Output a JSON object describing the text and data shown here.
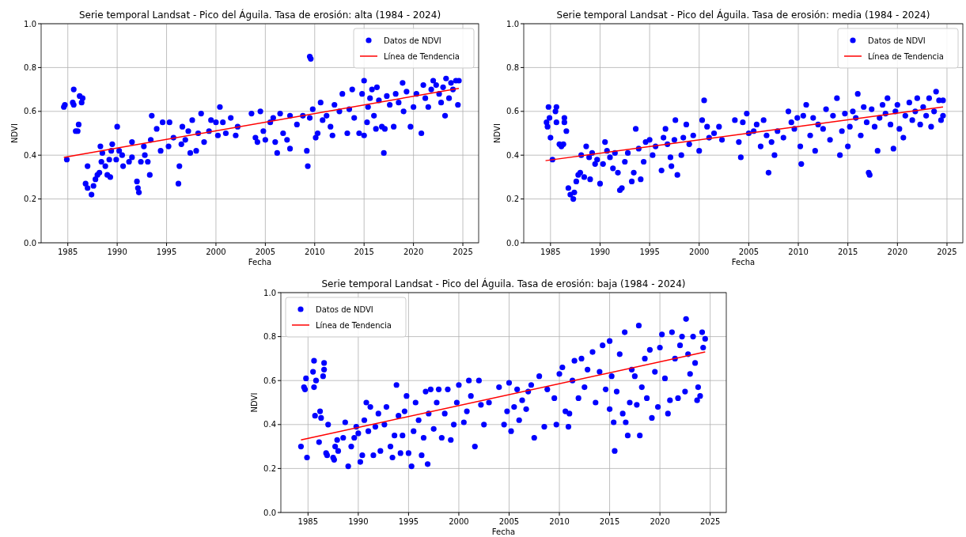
{
  "chart_data": [
    {
      "type": "scatter",
      "title": "Serie temporal Landsat - Pico del Águila. Tasa de erosión: alta (1984 - 2024)",
      "xlabel": "Fecha",
      "ylabel": "NDVI",
      "xlim": [
        1982.3,
        2026.6
      ],
      "ylim": [
        0,
        1
      ],
      "xticks": [
        1985,
        1990,
        1995,
        2000,
        2005,
        2010,
        2015,
        2020,
        2025
      ],
      "yticks": [
        {
          "value": 0,
          "label": "0.0"
        },
        {
          "value": 0.2,
          "label": "0.2"
        },
        {
          "value": 0.4,
          "label": "0.4"
        },
        {
          "value": 0.6,
          "label": "0.6"
        },
        {
          "value": 0.8,
          "label": "0.8"
        },
        {
          "value": 1,
          "label": "1.0"
        }
      ],
      "grid": true,
      "legend": "top right",
      "series": [
        {
          "name": "Datos de NDVI",
          "type": "scatter",
          "marker": "circle",
          "color": "#0000ff",
          "x": [
            1984.6,
            1984.7,
            1984.9,
            1985.5,
            1985.6,
            1985.6,
            1985.8,
            1986.0,
            1986.1,
            1986.2,
            1986.4,
            1986.5,
            1987.0,
            1986.8,
            1987.0,
            1987.4,
            1987.6,
            1987.8,
            1988.0,
            1988.2,
            1988.5,
            1988.4,
            1988.3,
            1988.8,
            1989.0,
            1989.3,
            1989.2,
            1989.4,
            1989.5,
            1989.9,
            1990.2,
            1990.5,
            1990.0,
            1990.6,
            1991.2,
            1991.5,
            1991.5,
            1992.0,
            1992.1,
            1992.2,
            1992.4,
            1992.8,
            1992.7,
            1993.3,
            1993.1,
            1993.5,
            1993.4,
            1994.0,
            1994.4,
            1994.6,
            1995.2,
            1995.3,
            1995.7,
            1996.2,
            1996.3,
            1996.5,
            1996.6,
            1996.9,
            1997.2,
            1997.4,
            1997.6,
            1998.0,
            1998.2,
            1998.5,
            1998.8,
            1999.3,
            1999.5,
            2000.0,
            2000.2,
            2000.4,
            2000.7,
            2001.0,
            2001.5,
            2002.0,
            2002.2,
            2003.6,
            2004.0,
            2004.2,
            2004.5,
            2004.8,
            2005.0,
            2005.5,
            2005.8,
            2006.0,
            2006.2,
            2006.5,
            2006.8,
            2007.2,
            2007.5,
            2007.5,
            2008.2,
            2008.8,
            2009.2,
            2009.3,
            2009.5,
            2009.6,
            2009.5,
            2009.8,
            2010.1,
            2010.3,
            2010.6,
            2010.8,
            2011.2,
            2011.6,
            2011.8,
            2012.0,
            2012.5,
            2012.8,
            2013.3,
            2013.5,
            2013.8,
            2014.0,
            2014.5,
            2014.8,
            2015.0,
            2015.0,
            2015.3,
            2015.4,
            2015.6,
            2015.8,
            2016.0,
            2016.2,
            2016.3,
            2016.5,
            2016.8,
            2017.0,
            2017.1,
            2017.3,
            2017.6,
            2018.0,
            2018.2,
            2018.5,
            2018.9,
            2019.0,
            2019.3,
            2019.7,
            2020.0,
            2020.3,
            2020.8,
            2021.0,
            2021.2,
            2021.5,
            2021.8,
            2022.0,
            2022.3,
            2022.6,
            2022.8,
            2023.0,
            2023.2,
            2023.3,
            2023.6,
            2023.8,
            2024.0,
            2024.3,
            2024.5,
            2024.6
          ],
          "values": [
            0.62,
            0.63,
            0.38,
            0.64,
            0.7,
            0.63,
            0.51,
            0.51,
            0.54,
            0.67,
            0.64,
            0.66,
            0.35,
            0.27,
            0.25,
            0.22,
            0.26,
            0.29,
            0.31,
            0.32,
            0.41,
            0.37,
            0.44,
            0.35,
            0.31,
            0.3,
            0.38,
            0.42,
            0.45,
            0.38,
            0.42,
            0.4,
            0.53,
            0.35,
            0.37,
            0.39,
            0.46,
            0.28,
            0.25,
            0.23,
            0.37,
            0.4,
            0.44,
            0.31,
            0.37,
            0.58,
            0.47,
            0.52,
            0.42,
            0.55,
            0.44,
            0.55,
            0.48,
            0.27,
            0.35,
            0.45,
            0.53,
            0.47,
            0.51,
            0.41,
            0.56,
            0.42,
            0.5,
            0.59,
            0.46,
            0.51,
            0.56,
            0.55,
            0.49,
            0.62,
            0.55,
            0.5,
            0.57,
            0.49,
            0.53,
            0.59,
            0.48,
            0.46,
            0.6,
            0.51,
            0.47,
            0.55,
            0.57,
            0.46,
            0.41,
            0.59,
            0.5,
            0.47,
            0.43,
            0.58,
            0.54,
            0.58,
            0.42,
            0.35,
            0.85,
            0.84,
            0.57,
            0.61,
            0.48,
            0.5,
            0.64,
            0.56,
            0.58,
            0.53,
            0.49,
            0.63,
            0.6,
            0.68,
            0.5,
            0.61,
            0.7,
            0.57,
            0.5,
            0.68,
            0.49,
            0.74,
            0.55,
            0.62,
            0.66,
            0.7,
            0.58,
            0.52,
            0.71,
            0.65,
            0.53,
            0.41,
            0.52,
            0.67,
            0.63,
            0.53,
            0.68,
            0.64,
            0.73,
            0.6,
            0.69,
            0.53,
            0.62,
            0.68,
            0.5,
            0.72,
            0.66,
            0.62,
            0.7,
            0.74,
            0.72,
            0.68,
            0.64,
            0.71,
            0.58,
            0.75,
            0.66,
            0.73,
            0.7,
            0.74,
            0.63,
            0.74
          ]
        },
        {
          "name": "Línea de Tendencia",
          "type": "line",
          "marker": "none",
          "color": "#ff0000",
          "x": [
            1984.6,
            2024.6
          ],
          "values": [
            0.39,
            0.705
          ]
        }
      ]
    },
    {
      "type": "scatter",
      "title": "Serie temporal Landsat - Pico del Águila. Tasa de erosión: media (1984 - 2024)",
      "xlabel": "Fecha",
      "ylabel": "NDVI",
      "xlim": [
        1982.3,
        2026.6
      ],
      "ylim": [
        0,
        1
      ],
      "xticks": [
        1985,
        1990,
        1995,
        2000,
        2005,
        2010,
        2015,
        2020,
        2025
      ],
      "yticks": [
        {
          "value": 0,
          "label": "0.0"
        },
        {
          "value": 0.2,
          "label": "0.2"
        },
        {
          "value": 0.4,
          "label": "0.4"
        },
        {
          "value": 0.6,
          "label": "0.6"
        },
        {
          "value": 0.8,
          "label": "0.8"
        },
        {
          "value": 1,
          "label": "1.0"
        }
      ],
      "grid": true,
      "legend": "top right",
      "series": [
        {
          "name": "Datos de NDVI",
          "type": "scatter",
          "marker": "circle",
          "color": "#0000ff",
          "x": [
            1984.6,
            1984.7,
            1984.8,
            1984.9,
            1985.0,
            1985.2,
            1985.5,
            1985.6,
            1985.6,
            1985.9,
            1986.1,
            1986.3,
            1986.4,
            1986.4,
            1986.6,
            1986.8,
            1987.0,
            1987.3,
            1987.4,
            1987.6,
            1987.8,
            1988.0,
            1988.1,
            1988.4,
            1988.6,
            1988.9,
            1989.0,
            1989.2,
            1989.5,
            1989.7,
            1990.0,
            1990.3,
            1990.5,
            1990.7,
            1991.0,
            1991.3,
            1991.5,
            1991.8,
            1992.0,
            1992.2,
            1992.5,
            1992.8,
            1993.2,
            1993.4,
            1993.6,
            1993.9,
            1994.1,
            1994.4,
            1994.6,
            1995.0,
            1995.3,
            1995.6,
            1996.2,
            1996.4,
            1996.6,
            1996.8,
            1997.1,
            1997.2,
            1997.5,
            1997.6,
            1997.8,
            1998.2,
            1998.4,
            1998.7,
            1999.0,
            1999.4,
            2000.0,
            2000.3,
            2000.5,
            2000.8,
            2001.0,
            2001.5,
            2002.0,
            2002.3,
            2003.6,
            2004.0,
            2004.2,
            2004.4,
            2004.8,
            2005.0,
            2005.5,
            2005.8,
            2006.2,
            2006.5,
            2006.8,
            2007.0,
            2007.3,
            2007.6,
            2007.9,
            2008.5,
            2009.0,
            2009.3,
            2009.6,
            2009.9,
            2010.2,
            2010.3,
            2010.5,
            2010.8,
            2011.2,
            2011.5,
            2011.7,
            2012.0,
            2012.5,
            2012.8,
            2013.2,
            2013.5,
            2013.9,
            2014.2,
            2014.4,
            2014.7,
            2015.0,
            2015.2,
            2015.5,
            2015.8,
            2016.0,
            2016.3,
            2016.6,
            2016.9,
            2017.1,
            2017.2,
            2017.4,
            2017.7,
            2018.0,
            2018.2,
            2018.5,
            2018.8,
            2019.0,
            2019.3,
            2019.6,
            2019.8,
            2020.0,
            2020.2,
            2020.6,
            2020.8,
            2021.2,
            2021.5,
            2021.8,
            2022.0,
            2022.3,
            2022.6,
            2022.9,
            2023.2,
            2023.4,
            2023.7,
            2023.9,
            2024.2,
            2024.4,
            2024.6,
            2024.6
          ],
          "values": [
            0.55,
            0.53,
            0.62,
            0.57,
            0.48,
            0.38,
            0.6,
            0.62,
            0.55,
            0.45,
            0.44,
            0.45,
            0.55,
            0.57,
            0.51,
            0.25,
            0.22,
            0.2,
            0.23,
            0.28,
            0.31,
            0.32,
            0.4,
            0.3,
            0.44,
            0.39,
            0.29,
            0.41,
            0.36,
            0.38,
            0.27,
            0.36,
            0.46,
            0.42,
            0.39,
            0.34,
            0.41,
            0.32,
            0.24,
            0.25,
            0.37,
            0.41,
            0.28,
            0.32,
            0.52,
            0.43,
            0.29,
            0.37,
            0.46,
            0.47,
            0.4,
            0.44,
            0.33,
            0.48,
            0.52,
            0.45,
            0.39,
            0.35,
            0.47,
            0.56,
            0.31,
            0.4,
            0.48,
            0.54,
            0.45,
            0.49,
            0.42,
            0.56,
            0.65,
            0.53,
            0.48,
            0.5,
            0.53,
            0.47,
            0.56,
            0.46,
            0.39,
            0.55,
            0.59,
            0.5,
            0.51,
            0.54,
            0.44,
            0.56,
            0.49,
            0.32,
            0.46,
            0.4,
            0.51,
            0.48,
            0.6,
            0.55,
            0.52,
            0.57,
            0.44,
            0.36,
            0.58,
            0.63,
            0.49,
            0.57,
            0.42,
            0.54,
            0.52,
            0.61,
            0.47,
            0.58,
            0.66,
            0.4,
            0.51,
            0.59,
            0.44,
            0.53,
            0.6,
            0.57,
            0.68,
            0.49,
            0.62,
            0.55,
            0.32,
            0.31,
            0.61,
            0.53,
            0.42,
            0.57,
            0.63,
            0.59,
            0.66,
            0.54,
            0.43,
            0.6,
            0.63,
            0.52,
            0.48,
            0.58,
            0.64,
            0.56,
            0.6,
            0.66,
            0.54,
            0.62,
            0.58,
            0.66,
            0.53,
            0.6,
            0.69,
            0.65,
            0.56,
            0.65,
            0.58
          ]
        },
        {
          "name": "Línea de Tendencia",
          "type": "line",
          "marker": "none",
          "color": "#ff0000",
          "x": [
            1984.5,
            2024.6
          ],
          "values": [
            0.375,
            0.62
          ]
        }
      ]
    },
    {
      "type": "scatter",
      "title": "Serie temporal Landsat - Pico del Águila. Tasa de erosión: baja (1984 - 2024)",
      "xlabel": "Fecha",
      "ylabel": "NDVI",
      "xlim": [
        1982.3,
        2026.6
      ],
      "ylim": [
        0,
        1
      ],
      "xticks": [
        1985,
        1990,
        1995,
        2000,
        2005,
        2010,
        2015,
        2020,
        2025
      ],
      "yticks": [
        {
          "value": 0,
          "label": "0.0"
        },
        {
          "value": 0.2,
          "label": "0.2"
        },
        {
          "value": 0.4,
          "label": "0.4"
        },
        {
          "value": 0.6,
          "label": "0.6"
        },
        {
          "value": 0.8,
          "label": "0.8"
        },
        {
          "value": 1,
          "label": "1.0"
        }
      ],
      "grid": true,
      "legend": "top left",
      "series": [
        {
          "name": "Datos de NDVI",
          "type": "scatter",
          "marker": "circle",
          "color": "#0000ff",
          "x": [
            1984.3,
            1984.6,
            1984.7,
            1984.8,
            1984.9,
            1985.5,
            1985.6,
            1985.6,
            1985.8,
            1985.7,
            1986.1,
            1986.2,
            1986.3,
            1986.5,
            1986.6,
            1986.6,
            1986.8,
            1986.9,
            1987.0,
            1987.5,
            1987.6,
            1987.7,
            1987.9,
            1988.0,
            1988.5,
            1988.7,
            1989.0,
            1989.3,
            1989.6,
            1989.8,
            1990.0,
            1990.2,
            1990.4,
            1990.6,
            1990.8,
            1991.0,
            1991.2,
            1991.5,
            1991.7,
            1992.0,
            1992.2,
            1992.6,
            1992.8,
            1993.2,
            1993.4,
            1993.6,
            1993.8,
            1994.0,
            1994.2,
            1994.4,
            1994.6,
            1994.8,
            1995.0,
            1995.3,
            1995.5,
            1995.7,
            1996.0,
            1996.3,
            1996.5,
            1996.7,
            1996.9,
            1997.0,
            1997.2,
            1997.5,
            1997.8,
            1998.0,
            1998.3,
            1998.6,
            1998.9,
            1999.2,
            1999.5,
            1999.8,
            2000.0,
            2000.5,
            2000.8,
            2001.0,
            2001.2,
            2001.6,
            2002.0,
            2002.2,
            2002.5,
            2003.0,
            2004.0,
            2004.5,
            2004.8,
            2005.0,
            2005.2,
            2005.5,
            2005.8,
            2006.0,
            2006.3,
            2006.7,
            2006.9,
            2007.2,
            2007.5,
            2008.0,
            2008.5,
            2008.8,
            2009.5,
            2009.7,
            2010.0,
            2010.3,
            2010.6,
            2010.9,
            2011.0,
            2011.3,
            2011.5,
            2011.9,
            2012.2,
            2012.5,
            2012.8,
            2013.3,
            2013.6,
            2014.0,
            2014.3,
            2014.6,
            2015.0,
            2015.0,
            2015.2,
            2015.4,
            2015.5,
            2015.7,
            2016.0,
            2016.3,
            2016.5,
            2016.6,
            2016.8,
            2017.0,
            2017.2,
            2017.5,
            2017.7,
            2017.9,
            2018.0,
            2018.2,
            2018.5,
            2018.7,
            2019.0,
            2019.2,
            2019.5,
            2019.8,
            2020.0,
            2020.2,
            2020.5,
            2020.8,
            2021.0,
            2021.2,
            2021.5,
            2021.8,
            2022.0,
            2022.2,
            2022.5,
            2022.6,
            2022.8,
            2023.0,
            2023.3,
            2023.5,
            2023.7,
            2023.8,
            2024.0,
            2024.2,
            2024.3,
            2024.5
          ],
          "values": [
            0.3,
            0.57,
            0.56,
            0.61,
            0.25,
            0.64,
            0.69,
            0.57,
            0.6,
            0.44,
            0.32,
            0.46,
            0.43,
            0.62,
            0.65,
            0.68,
            0.27,
            0.26,
            0.4,
            0.25,
            0.24,
            0.3,
            0.33,
            0.28,
            0.34,
            0.41,
            0.21,
            0.3,
            0.34,
            0.39,
            0.36,
            0.23,
            0.26,
            0.42,
            0.5,
            0.37,
            0.48,
            0.26,
            0.39,
            0.45,
            0.28,
            0.4,
            0.48,
            0.3,
            0.25,
            0.35,
            0.58,
            0.44,
            0.27,
            0.35,
            0.46,
            0.53,
            0.27,
            0.21,
            0.37,
            0.5,
            0.42,
            0.26,
            0.34,
            0.55,
            0.22,
            0.45,
            0.56,
            0.38,
            0.5,
            0.56,
            0.34,
            0.45,
            0.56,
            0.33,
            0.4,
            0.5,
            0.58,
            0.41,
            0.46,
            0.6,
            0.53,
            0.3,
            0.6,
            0.49,
            0.4,
            0.5,
            0.57,
            0.4,
            0.46,
            0.59,
            0.37,
            0.48,
            0.56,
            0.42,
            0.51,
            0.47,
            0.55,
            0.58,
            0.34,
            0.62,
            0.39,
            0.56,
            0.52,
            0.4,
            0.63,
            0.66,
            0.46,
            0.39,
            0.45,
            0.6,
            0.69,
            0.52,
            0.7,
            0.57,
            0.65,
            0.73,
            0.5,
            0.64,
            0.76,
            0.56,
            0.47,
            0.78,
            0.62,
            0.41,
            0.28,
            0.55,
            0.72,
            0.45,
            0.82,
            0.41,
            0.35,
            0.5,
            0.65,
            0.62,
            0.49,
            0.85,
            0.35,
            0.57,
            0.7,
            0.52,
            0.74,
            0.43,
            0.64,
            0.48,
            0.75,
            0.81,
            0.61,
            0.45,
            0.51,
            0.82,
            0.7,
            0.52,
            0.76,
            0.8,
            0.55,
            0.88,
            0.72,
            0.63,
            0.8,
            0.68,
            0.51,
            0.57,
            0.53,
            0.82,
            0.75,
            0.79
          ]
        },
        {
          "name": "Línea de Tendencia",
          "type": "line",
          "marker": "none",
          "color": "#ff0000",
          "x": [
            1984.3,
            2024.5
          ],
          "values": [
            0.33,
            0.73
          ]
        }
      ]
    }
  ]
}
